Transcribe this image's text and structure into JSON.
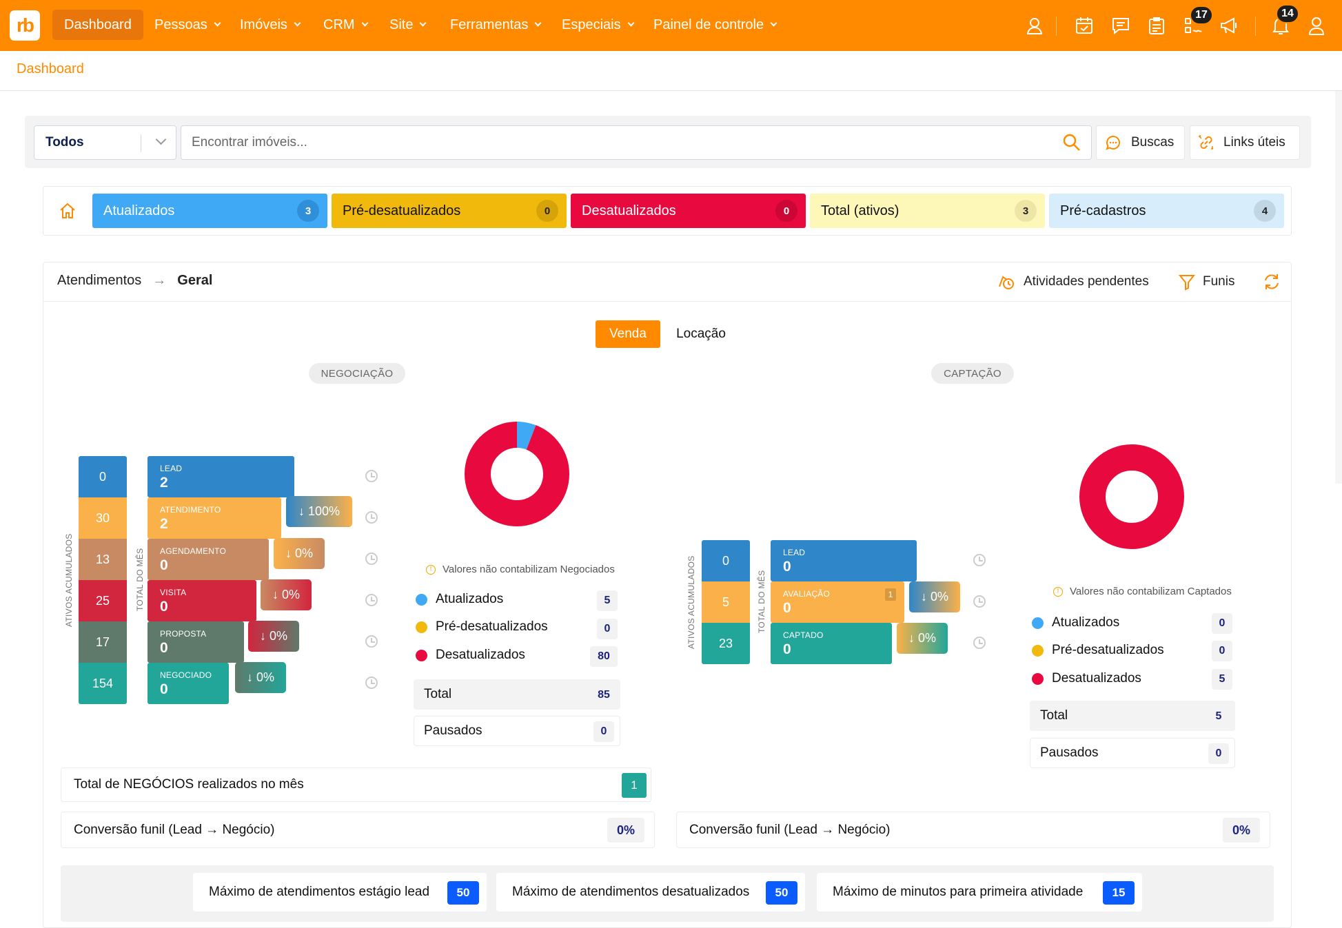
{
  "app": {
    "logo": "rb",
    "colors": {
      "brand": "#ff8a00"
    }
  },
  "nav": {
    "items": [
      {
        "label": "Dashboard",
        "active": true
      },
      {
        "label": "Pessoas"
      },
      {
        "label": "Imóveis"
      },
      {
        "label": "CRM"
      },
      {
        "label": "Site"
      },
      {
        "label": "Ferramentas"
      },
      {
        "label": "Especiais"
      },
      {
        "label": "Painel de controle"
      }
    ],
    "icons": [
      "user-headset-icon",
      "calendar-check-icon",
      "chat-icon",
      "clipboard-icon",
      "task-list-icon",
      "megaphone-icon",
      "bell-icon",
      "user-icon"
    ],
    "badges": {
      "tasks": "17",
      "notifications": "14"
    }
  },
  "breadcrumb": "Dashboard",
  "search": {
    "filter": "Todos",
    "placeholder": "Encontrar imóveis...",
    "buscas": "Buscas",
    "links": "Links úteis"
  },
  "stats": [
    {
      "label": "Atualizados",
      "count": "3",
      "color": "#3fa9f5"
    },
    {
      "label": "Pré-desatualizados",
      "count": "0",
      "color": "#f0b90b"
    },
    {
      "label": "Desatualizados",
      "count": "0",
      "color": "#e8093e"
    },
    {
      "label": "Total (ativos)",
      "count": "3",
      "color": "#fdf7b8"
    },
    {
      "label": "Pré-cadastros",
      "count": "4",
      "color": "#d7edfb"
    }
  ],
  "atendimentos": {
    "title": "Atendimentos",
    "arrow": "→",
    "sub": "Geral",
    "pending": "Atividades pendentes",
    "funis": "Funis"
  },
  "tabs": {
    "venda": "Venda",
    "locacao": "Locação"
  },
  "vlabels": {
    "acc": "ATIVOS ACUMULADOS",
    "mes": "TOTAL DO MÊS"
  },
  "negociacao": {
    "title": "NEGOCIAÇÃO",
    "accumulated": [
      "0",
      "30",
      "13",
      "25",
      "17",
      "154"
    ],
    "stages": [
      {
        "label": "LEAD",
        "value": "2"
      },
      {
        "label": "ATENDIMENTO",
        "value": "2"
      },
      {
        "label": "AGENDAMENTO",
        "value": "0"
      },
      {
        "label": "VISITA",
        "value": "0"
      },
      {
        "label": "PROPOSTA",
        "value": "0"
      },
      {
        "label": "NEGOCIADO",
        "value": "0"
      }
    ],
    "drops": [
      "↓ 100%",
      "↓ 0%",
      "↓ 0%",
      "↓ 0%",
      "↓ 0%"
    ],
    "note": "Valores não contabilizam Negociados",
    "legend": [
      {
        "label": "Atualizados",
        "value": "5"
      },
      {
        "label": "Pré-desatualizados",
        "value": "0"
      },
      {
        "label": "Desatualizados",
        "value": "80"
      }
    ],
    "total_label": "Total",
    "total": "85",
    "paused_label": "Pausados",
    "paused": "0",
    "donut": [
      {
        "name": "Atualizados",
        "value": 5,
        "color": "#3fa9f5"
      },
      {
        "name": "Pré-desatualizados",
        "value": 0,
        "color": "#f0b90b"
      },
      {
        "name": "Desatualizados",
        "value": 80,
        "color": "#e8093e"
      }
    ]
  },
  "captacao": {
    "title": "CAPTAÇÃO",
    "accumulated": [
      "0",
      "5",
      "23"
    ],
    "stages": [
      {
        "label": "LEAD",
        "value": "0"
      },
      {
        "label": "AVALIAÇÃO",
        "value": "0",
        "extra": "1"
      },
      {
        "label": "CAPTADO",
        "value": "0"
      }
    ],
    "drops": [
      "↓ 0%",
      "↓ 0%"
    ],
    "note": "Valores não contabilizam Captados",
    "legend": [
      {
        "label": "Atualizados",
        "value": "0"
      },
      {
        "label": "Pré-desatualizados",
        "value": "0"
      },
      {
        "label": "Desatualizados",
        "value": "5"
      }
    ],
    "total_label": "Total",
    "total": "5",
    "paused_label": "Pausados",
    "paused": "0",
    "donut": [
      {
        "name": "Atualizados",
        "value": 0,
        "color": "#3fa9f5"
      },
      {
        "name": "Pré-desatualizados",
        "value": 0,
        "color": "#f0b90b"
      },
      {
        "name": "Desatualizados",
        "value": 5,
        "color": "#e8093e"
      }
    ]
  },
  "negocios": {
    "label": "Total de NEGÓCIOS realizados no mês",
    "value": "1"
  },
  "conversao": {
    "label": "Conversão funil (Lead → Negócio)",
    "value_neg": "0%",
    "value_cap": "0%"
  },
  "limits": [
    {
      "label": "Máximo de atendimentos estágio lead",
      "value": "50"
    },
    {
      "label": "Máximo de atendimentos desatualizados",
      "value": "50"
    },
    {
      "label": "Máximo de minutos para primeira atividade",
      "value": "15"
    }
  ]
}
